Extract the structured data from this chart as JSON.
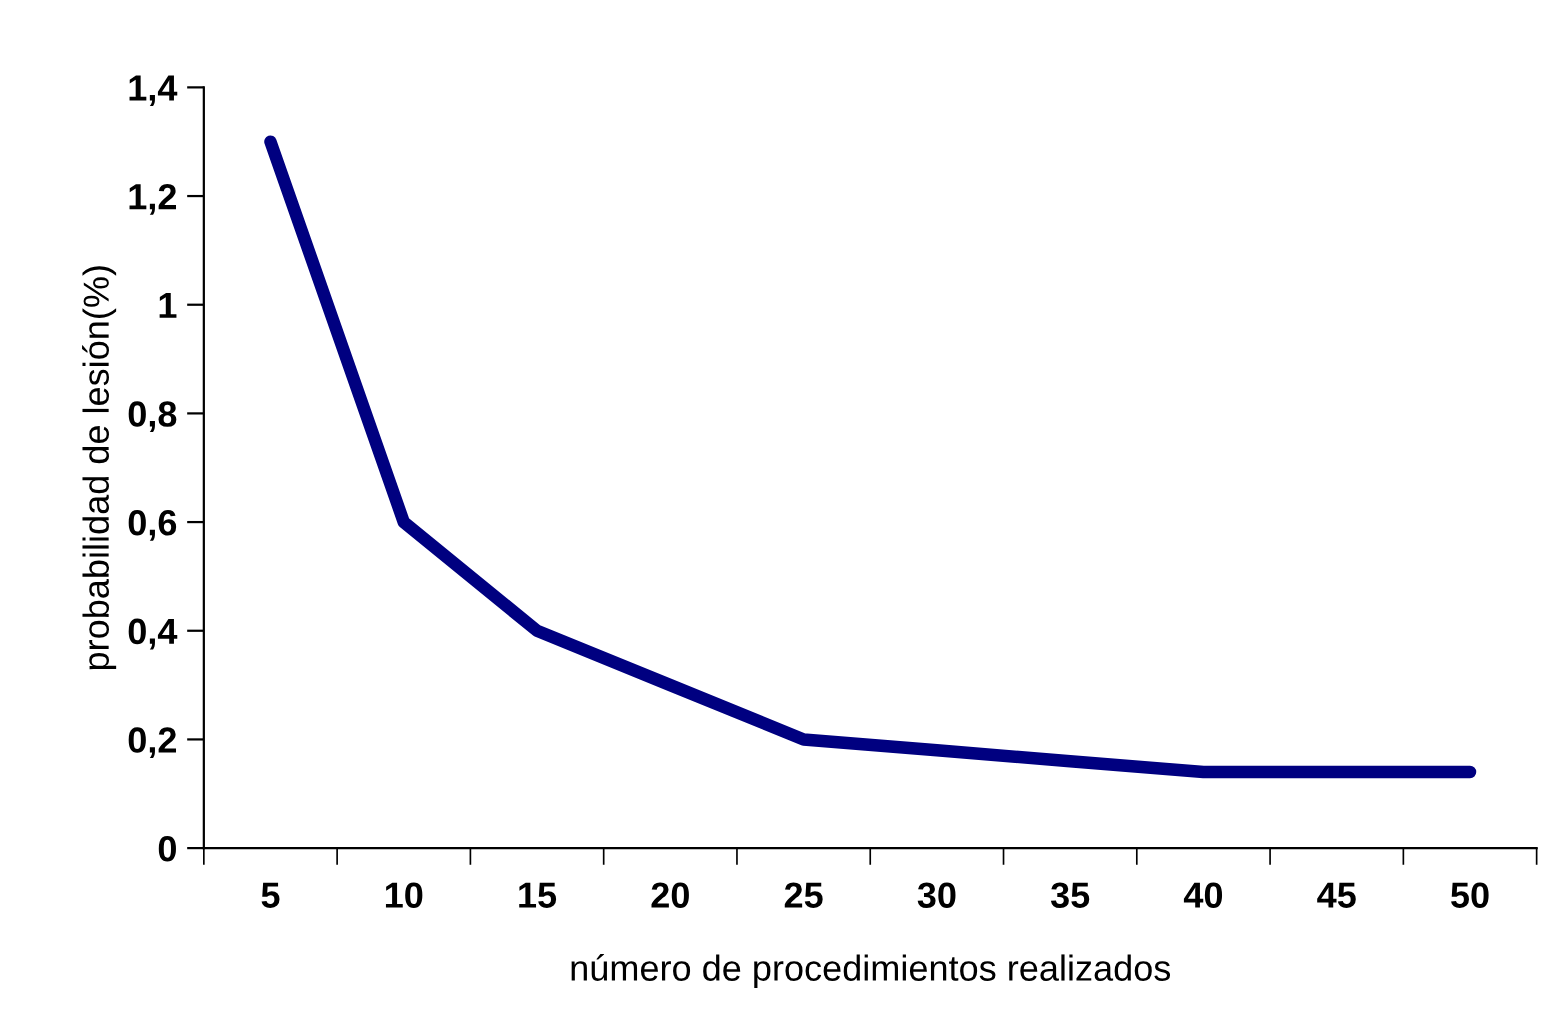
{
  "chart_data": {
    "type": "line",
    "xlabel": "número de procedimientos realizados",
    "ylabel": "probabilidad de lesión(%)",
    "categories": [
      "5",
      "10",
      "15",
      "20",
      "25",
      "30",
      "35",
      "40",
      "45",
      "50"
    ],
    "series": [
      {
        "color": "#000080",
        "values": [
          1.3,
          0.6,
          0.4,
          0.3,
          0.2,
          0.18,
          0.16,
          0.14,
          0.14,
          0.14
        ]
      }
    ],
    "ylim": [
      0,
      1.4
    ],
    "yticks": [
      0,
      {
        "value": 0.2,
        "label": "0,2"
      },
      {
        "value": 0.4,
        "label": "0,4"
      },
      {
        "value": 0.6,
        "label": "0,6"
      },
      {
        "value": 0.8,
        "label": "0,8"
      },
      1,
      {
        "value": 1.2,
        "label": "1,2"
      },
      {
        "value": 1.4,
        "label": "1,4"
      }
    ],
    "grid": false,
    "legend": false,
    "marker": "none",
    "line_style": "solid"
  }
}
